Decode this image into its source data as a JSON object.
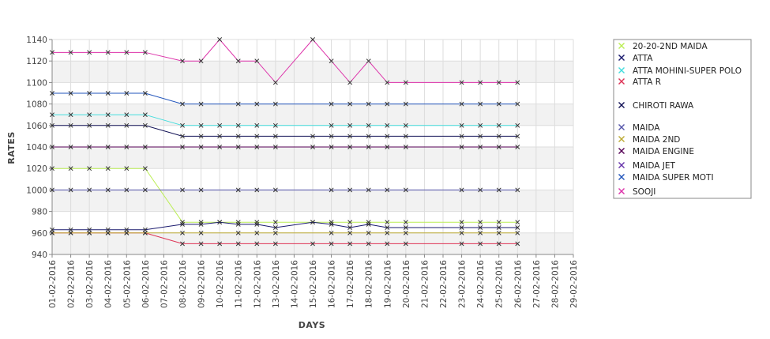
{
  "chart_data": {
    "type": "line",
    "title": "",
    "xlabel": "DAYS",
    "ylabel": "RATES",
    "ylim": [
      940,
      1140
    ],
    "yticks": [
      940,
      960,
      980,
      1000,
      1020,
      1040,
      1060,
      1080,
      1100,
      1120,
      1140
    ],
    "grid": true,
    "legend_position": "right",
    "categories": [
      "01-02-2016",
      "02-02-2016",
      "03-02-2016",
      "04-02-2016",
      "05-02-2016",
      "06-02-2016",
      "07-02-2016",
      "08-02-2016",
      "09-02-2016",
      "10-02-2016",
      "11-02-2016",
      "12-02-2016",
      "13-02-2016",
      "14-02-2016",
      "15-02-2016",
      "16-02-2016",
      "17-02-2016",
      "18-02-2016",
      "19-02-2016",
      "20-02-2016",
      "21-02-2016",
      "22-02-2016",
      "23-02-2016",
      "24-02-2016",
      "25-02-2016",
      "26-02-2016",
      "27-02-2016",
      "28-02-2016",
      "29-02-2016"
    ],
    "series": [
      {
        "name": "20-20-2ND MAIDA",
        "color": "#bbee55",
        "values": [
          1020,
          1020,
          1020,
          1020,
          1020,
          1020,
          null,
          970,
          970,
          970,
          970,
          970,
          970,
          null,
          970,
          970,
          970,
          970,
          970,
          970,
          null,
          null,
          970,
          970,
          970,
          970,
          null,
          null,
          null
        ]
      },
      {
        "name": "ATTA",
        "color": "#1a1a6e",
        "values": [
          963,
          963,
          963,
          963,
          963,
          963,
          null,
          968,
          968,
          970,
          968,
          968,
          965,
          null,
          970,
          968,
          965,
          968,
          965,
          965,
          null,
          null,
          965,
          965,
          965,
          965,
          null,
          null,
          null
        ]
      },
      {
        "name": "ATTA MOHINI-SUPER POLO",
        "color": "#44dddd",
        "values": [
          1070,
          1070,
          1070,
          1070,
          1070,
          1070,
          null,
          1060,
          1060,
          1060,
          1060,
          1060,
          1060,
          null,
          null,
          1060,
          1060,
          1060,
          1060,
          1060,
          null,
          null,
          1060,
          1060,
          1060,
          1060,
          null,
          null,
          null
        ]
      },
      {
        "name": "ATTA R",
        "color": "#dd3355",
        "values": [
          960,
          960,
          960,
          960,
          960,
          960,
          null,
          950,
          950,
          950,
          950,
          950,
          950,
          null,
          950,
          950,
          950,
          950,
          950,
          950,
          null,
          null,
          950,
          950,
          950,
          950,
          null,
          null,
          null
        ]
      },
      {
        "name": "CHIROTI RAWA",
        "color": "#111155",
        "values": [
          1060,
          1060,
          1060,
          1060,
          1060,
          1060,
          null,
          1050,
          1050,
          1050,
          1050,
          1050,
          1050,
          null,
          1050,
          1050,
          1050,
          1050,
          1050,
          1050,
          null,
          null,
          1050,
          1050,
          1050,
          1050,
          null,
          null,
          null
        ]
      },
      {
        "name": "MAIDA",
        "color": "#5555aa",
        "values": [
          1000,
          1000,
          1000,
          1000,
          1000,
          1000,
          null,
          1000,
          1000,
          null,
          1000,
          1000,
          1000,
          null,
          null,
          1000,
          1000,
          1000,
          1000,
          1000,
          null,
          null,
          1000,
          1000,
          1000,
          1000,
          null,
          null,
          null
        ]
      },
      {
        "name": "MAIDA 2ND",
        "color": "#bbaa33",
        "values": [
          960,
          960,
          960,
          960,
          960,
          960,
          null,
          960,
          960,
          null,
          960,
          960,
          960,
          null,
          null,
          960,
          960,
          960,
          960,
          960,
          null,
          null,
          960,
          960,
          960,
          960,
          null,
          null,
          null
        ]
      },
      {
        "name": "MAIDA ENGINE",
        "color": "#550055",
        "values": [
          1040,
          1040,
          1040,
          1040,
          1040,
          1040,
          null,
          1040,
          1040,
          1040,
          1040,
          1040,
          1040,
          null,
          1040,
          1040,
          1040,
          1040,
          1040,
          1040,
          null,
          null,
          1040,
          1040,
          1040,
          1040,
          null,
          null,
          null
        ]
      },
      {
        "name": "MAIDA JET",
        "color": "#6633aa",
        "values": [
          null,
          null,
          null,
          null,
          null,
          null,
          null,
          null,
          null,
          null,
          null,
          null,
          null,
          null,
          null,
          null,
          null,
          null,
          null,
          null,
          null,
          null,
          null,
          null,
          null,
          null,
          null,
          null,
          null
        ]
      },
      {
        "name": "MAIDA SUPER MOTI",
        "color": "#2255bb",
        "values": [
          1090,
          1090,
          1090,
          1090,
          1090,
          1090,
          null,
          1080,
          1080,
          null,
          1080,
          1080,
          1080,
          null,
          null,
          1080,
          1080,
          1080,
          1080,
          1080,
          null,
          null,
          1080,
          1080,
          1080,
          1080,
          null,
          null,
          null
        ]
      },
      {
        "name": "SOOJI",
        "color": "#dd33aa",
        "values": [
          1128,
          1128,
          1128,
          1128,
          1128,
          1128,
          null,
          1120,
          1120,
          1140,
          1120,
          1120,
          1100,
          null,
          1140,
          1120,
          1100,
          1120,
          1100,
          1100,
          null,
          null,
          1100,
          1100,
          1100,
          1100,
          null,
          null,
          null
        ]
      }
    ]
  }
}
